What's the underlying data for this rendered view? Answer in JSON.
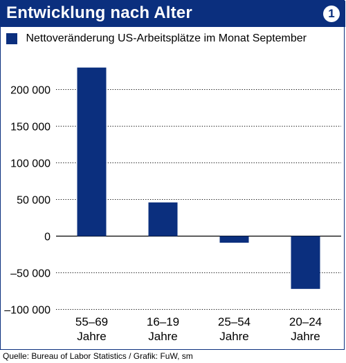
{
  "header": {
    "title": "Entwicklung nach Alter",
    "badge": "1"
  },
  "legend": {
    "label": "Nettoveränderung US-Arbeitsplätze im Monat September"
  },
  "source": "Quelle: Bureau of Labor Statistics / Grafik: FuW, sm",
  "colors": {
    "accent": "#0b2f7e",
    "grid": "#000000"
  },
  "chart_data": {
    "type": "bar",
    "categories": [
      [
        "55–69",
        "Jahre"
      ],
      [
        "16–19",
        "Jahre"
      ],
      [
        "25–54",
        "Jahre"
      ],
      [
        "20–24",
        "Jahre"
      ]
    ],
    "values": [
      230000,
      46000,
      -9000,
      -72000
    ],
    "ylim": [
      -100000,
      230000
    ],
    "yticks": [
      200000,
      150000,
      100000,
      50000,
      0,
      -50000,
      -100000
    ],
    "ytick_labels": [
      "200 000",
      "150 000",
      "100 000",
      "50 000",
      "0",
      "–50 000",
      "–100 000"
    ],
    "grid": "horizontal dotted",
    "legend_position": "top-left"
  }
}
